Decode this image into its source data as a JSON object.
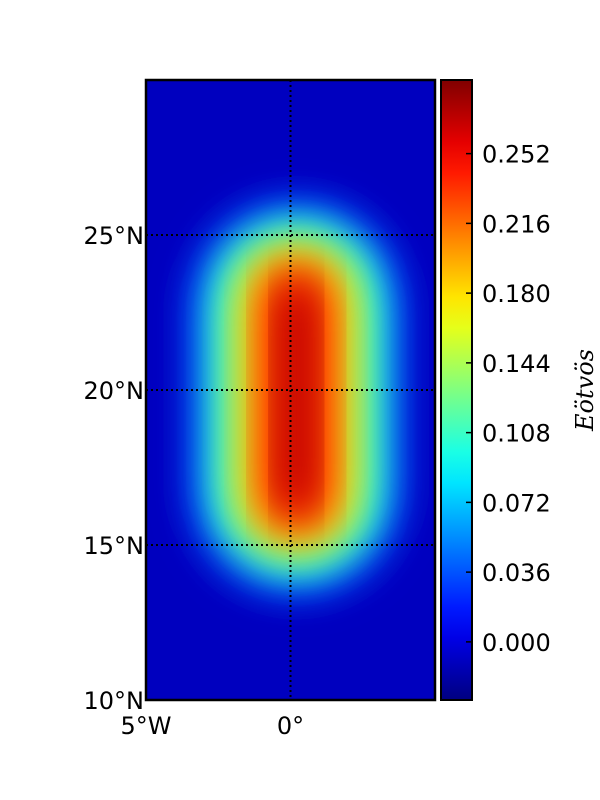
{
  "chart_data": {
    "type": "heatmap",
    "title": "",
    "colorbar_label": "Eötvös",
    "map": {
      "lon_range": [
        -5,
        5
      ],
      "lat_range": [
        10,
        30
      ],
      "lat_ticks": [
        {
          "value": 10,
          "label": "10°N"
        },
        {
          "value": 15,
          "label": "15°N"
        },
        {
          "value": 20,
          "label": "20°N"
        },
        {
          "value": 25,
          "label": "25°N"
        }
      ],
      "lon_ticks": [
        {
          "value": -5,
          "label": "5°W"
        },
        {
          "value": 0,
          "label": "0°"
        }
      ],
      "grid": "dotted black lines at labeled parallels and meridians"
    },
    "field": {
      "shape": "elongated north-south anomaly centered on 0°",
      "center_lon": 0.2,
      "lat_extent": [
        16.5,
        23
      ],
      "peak_value": 0.28,
      "background_value": -0.01
    },
    "colorbar": {
      "range": [
        -0.03,
        0.29
      ],
      "colormap": "jet",
      "ticks": [
        {
          "value": 0.0,
          "label": "0.000"
        },
        {
          "value": 0.036,
          "label": "0.036"
        },
        {
          "value": 0.072,
          "label": "0.072"
        },
        {
          "value": 0.108,
          "label": "0.108"
        },
        {
          "value": 0.144,
          "label": "0.144"
        },
        {
          "value": 0.18,
          "label": "0.180"
        },
        {
          "value": 0.216,
          "label": "0.216"
        },
        {
          "value": 0.252,
          "label": "0.252"
        }
      ]
    }
  }
}
